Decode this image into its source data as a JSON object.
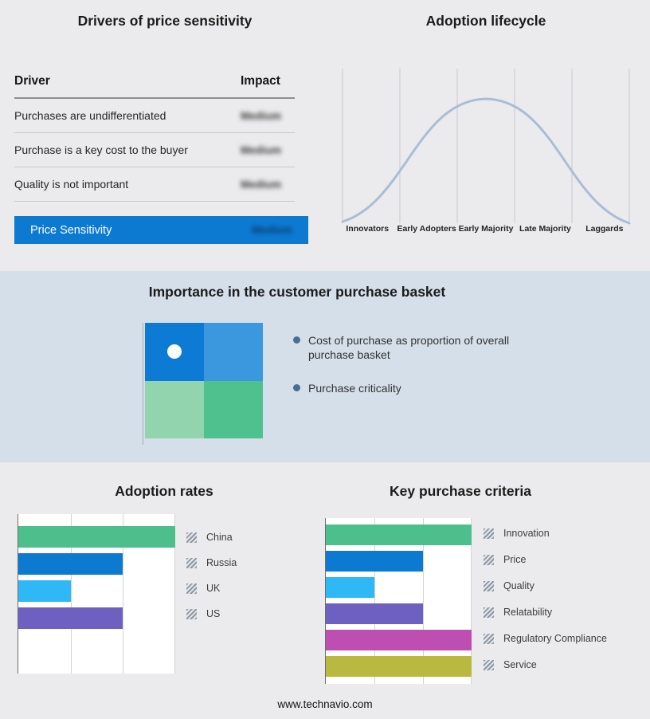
{
  "page": {
    "footer_url": "www.technavio.com",
    "background": "#ebebed",
    "band_background": "#d5dfe9"
  },
  "drivers_panel": {
    "title": "Drivers of price sensitivity",
    "columns": {
      "driver": "Driver",
      "impact": "Impact"
    },
    "rows": [
      {
        "driver": "Purchases are undifferentiated",
        "impact": "Medium"
      },
      {
        "driver": "Purchase is a key cost to the buyer",
        "impact": "Medium"
      },
      {
        "driver": "Quality is not important",
        "impact": "Medium"
      }
    ],
    "summary": {
      "label": "Price Sensitivity",
      "impact": "Medium",
      "bar_color": "#0d7ad2"
    }
  },
  "lifecycle_panel": {
    "title": "Adoption lifecycle",
    "curve_color": "#a9bdd6"
  },
  "basket_panel": {
    "title": "Importance in the customer purchase basket",
    "bullets": [
      "Cost of purchase as proportion of overall purchase basket",
      "Purchase criticality"
    ],
    "matrix": {
      "top_left": "#0d7ad3",
      "top_right": "#3c98de",
      "bottom_left": "#92d4ae",
      "bottom_right": "#4fc18f"
    }
  },
  "chart_data": [
    {
      "id": "lifecycle",
      "type": "line",
      "title": "Adoption lifecycle",
      "categories": [
        "Innovators",
        "Early Adopters",
        "Early Majority",
        "Late Majority",
        "Laggards"
      ],
      "values": [
        15,
        60,
        100,
        60,
        15
      ],
      "ylim": [
        0,
        100
      ],
      "ylabel": "",
      "xlabel": "",
      "legend_position": "none",
      "grid": "vertical",
      "note": "Unlabeled bell curve peaking at Early Majority; values are estimated relative curve heights"
    },
    {
      "id": "adoption_rates",
      "type": "bar",
      "orientation": "horizontal",
      "title": "Adoption rates",
      "categories": [
        "China",
        "Russia",
        "UK",
        "US"
      ],
      "values": [
        3,
        2,
        1,
        2
      ],
      "xlim": [
        0,
        3
      ],
      "colors": [
        "#4dbf8d",
        "#0d7ad2",
        "#2eb8f5",
        "#6e60c0"
      ],
      "grid": "vertical",
      "legend_position": "right",
      "note": "No numeric axis labels shown; values estimated from gridlines (thirds of axis)"
    },
    {
      "id": "key_purchase_criteria",
      "type": "bar",
      "orientation": "horizontal",
      "title": "Key purchase criteria",
      "categories": [
        "Innovation",
        "Price",
        "Quality",
        "Relatability",
        "Regulatory Compliance",
        "Service"
      ],
      "values": [
        3,
        2,
        1,
        2,
        3,
        3
      ],
      "xlim": [
        0,
        3
      ],
      "colors": [
        "#4dbf8d",
        "#0d7ad2",
        "#2eb8f5",
        "#6e60c0",
        "#bd4fb2",
        "#b8b93e"
      ],
      "grid": "vertical",
      "legend_position": "right",
      "note": "No numeric axis labels shown; values estimated from gridlines (thirds of axis)"
    }
  ]
}
